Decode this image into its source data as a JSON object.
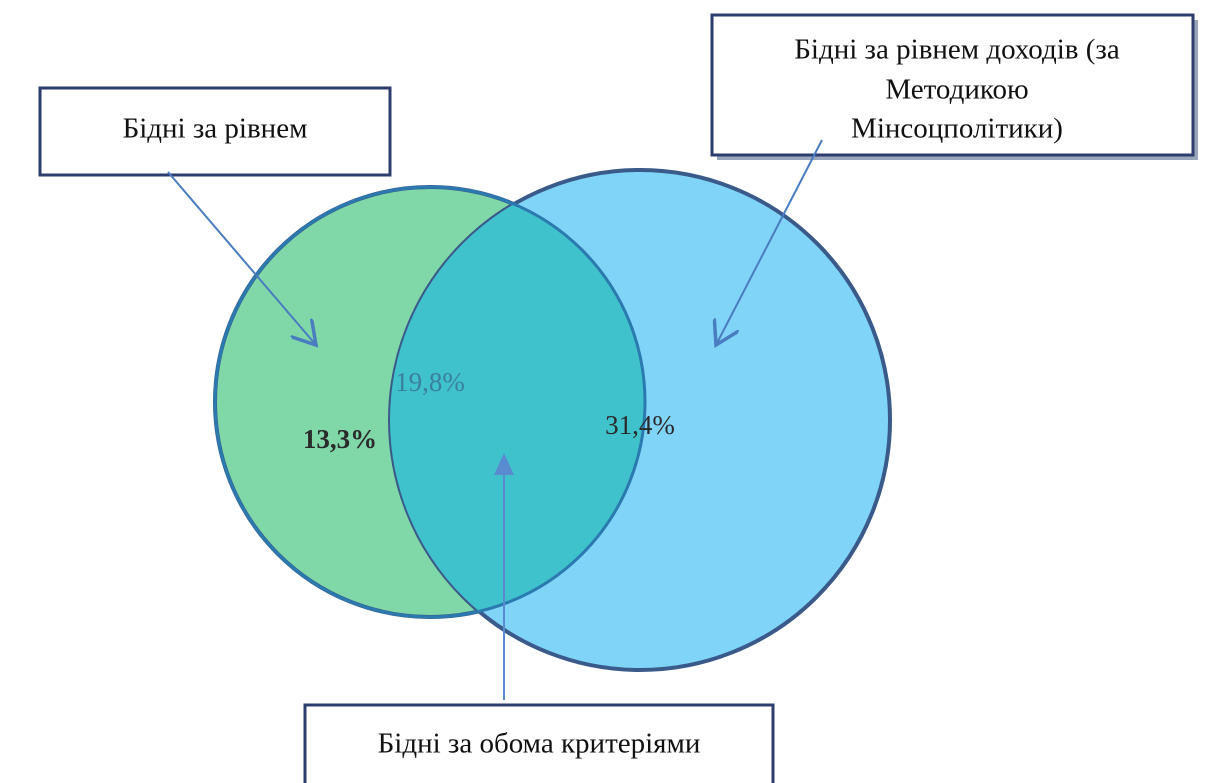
{
  "boxes": {
    "left": {
      "label": "Бідні за рівнем"
    },
    "right": {
      "lines": [
        "Бідні за рівнем  доходів  (за",
        "Методикою",
        "Мінсоцполітики)"
      ]
    },
    "bottom": {
      "label": "Бідні за обома критеріями"
    }
  },
  "regions": {
    "left_only": "13,3%",
    "overlap": "19,8%",
    "right_only": "31,4%"
  }
}
